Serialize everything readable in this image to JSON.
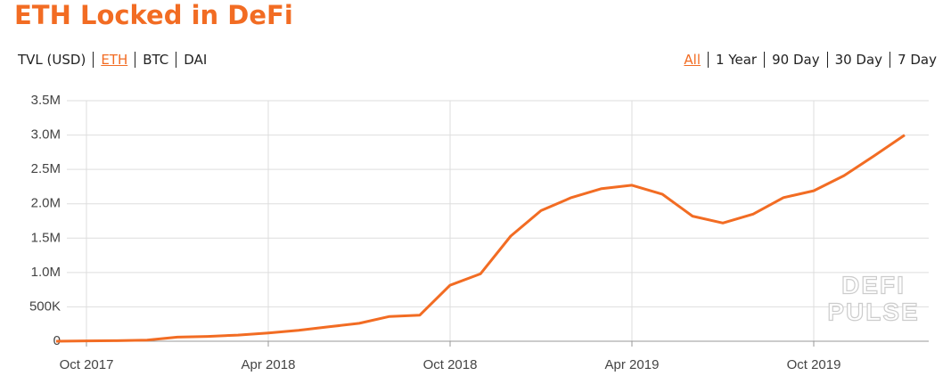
{
  "chart_data": {
    "type": "line",
    "title": "ETH Locked in DeFi",
    "unit_tabs": [
      "TVL (USD)",
      "ETH",
      "BTC",
      "DAI"
    ],
    "selected_unit": "ETH",
    "range_tabs": [
      "All",
      "1 Year",
      "90 Day",
      "30 Day",
      "7 Day"
    ],
    "selected_range": "All",
    "watermark": [
      "DEFI",
      "PULSE"
    ],
    "x": [
      "2017-09",
      "2017-10",
      "2017-11",
      "2017-12",
      "2018-01",
      "2018-02",
      "2018-03",
      "2018-04",
      "2018-05",
      "2018-06",
      "2018-07",
      "2018-08",
      "2018-09",
      "2018-10",
      "2018-11",
      "2018-12",
      "2019-01",
      "2019-02",
      "2019-03",
      "2019-04",
      "2019-05",
      "2019-06",
      "2019-07",
      "2019-08",
      "2019-09",
      "2019-10",
      "2019-11",
      "2019-12",
      "2020-01"
    ],
    "values": [
      0,
      5000,
      8000,
      15000,
      60000,
      70000,
      90000,
      120000,
      160000,
      210000,
      260000,
      360000,
      380000,
      815000,
      980000,
      1530000,
      1900000,
      2090000,
      2220000,
      2270000,
      2140000,
      1820000,
      1720000,
      1850000,
      2090000,
      2190000,
      2410000,
      2700000,
      3000000
    ],
    "color": "#f26c23",
    "xlim": [
      "2017-09",
      "2020-02"
    ],
    "xticks": [
      {
        "value": "2017-10",
        "label": "Oct 2017"
      },
      {
        "value": "2018-04",
        "label": "Apr 2018"
      },
      {
        "value": "2018-10",
        "label": "Oct 2018"
      },
      {
        "value": "2019-04",
        "label": "Apr 2019"
      },
      {
        "value": "2019-10",
        "label": "Oct 2019"
      }
    ],
    "ylim": [
      0,
      3500000
    ],
    "yticks": [
      0,
      {
        "value": 500000,
        "label": "500K"
      },
      {
        "value": 1000000,
        "label": "1.0M"
      },
      {
        "value": 1500000,
        "label": "1.5M"
      },
      {
        "value": 2000000,
        "label": "2.0M"
      },
      {
        "value": 2500000,
        "label": "2.5M"
      },
      {
        "value": 3000000,
        "label": "3.0M"
      },
      {
        "value": 3500000,
        "label": "3.5M"
      }
    ],
    "grid": true
  }
}
